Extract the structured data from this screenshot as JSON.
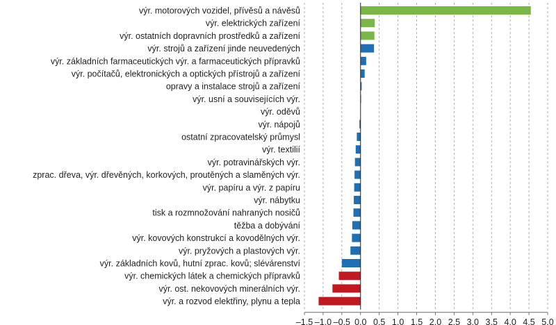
{
  "chart_data": {
    "type": "bar",
    "orientation": "horizontal",
    "categories": [
      "výr. motorových vozidel, přívěsů a návěsů",
      "výr. elektrických zařízení",
      "výr. ostatních dopravních prostředků a zařízení",
      "výr. strojů a zařízení jinde neuvedených",
      "výr. základních farmaceutických výr. a farmaceutických přípravků",
      "výr. počítačů, elektronických a optických přístrojů a zařízení",
      "opravy a instalace strojů a zařízení",
      "výr. usní a souvisejících výr.",
      "výr. oděvů",
      "výr. nápojů",
      "ostatní zpracovatelský průmysl",
      "výr. textilií",
      "výr. potravinářských výr.",
      "zprac. dřeva, výr. dřevěných, korkových, proutěných a slaměných výr.",
      "výr. papíru a výr. z papíru",
      "výr. nábytku",
      "tisk a rozmnožování nahraných nosičů",
      "těžba a dobývání",
      "výr. kovových konstrukcí a kovodělných výr.",
      "výr. pryžových a plastových výr.",
      "výr. základních kovů, hutní zprac. kovů; slévárenství",
      "výr. chemických látek a chemických přípravků",
      "výr. ost. nekovových minerálních výr.",
      "výr. a rozvod elektřiny, plynu a tepla"
    ],
    "values": [
      4.55,
      0.38,
      0.37,
      0.36,
      0.15,
      0.11,
      0.03,
      0.01,
      0.0,
      -0.03,
      -0.1,
      -0.13,
      -0.15,
      -0.16,
      -0.17,
      -0.18,
      -0.19,
      -0.22,
      -0.23,
      -0.27,
      -0.5,
      -0.58,
      -0.75,
      -1.12
    ],
    "bar_colors": [
      "#7ab648",
      "#7ab648",
      "#7ab648",
      "#1f6fb5",
      "#1f6fb5",
      "#1f6fb5",
      "#1f6fb5",
      "#1f6fb5",
      "#1f6fb5",
      "#1f6fb5",
      "#1f6fb5",
      "#1f6fb5",
      "#1f6fb5",
      "#1f6fb5",
      "#1f6fb5",
      "#1f6fb5",
      "#1f6fb5",
      "#1f6fb5",
      "#1f6fb5",
      "#1f6fb5",
      "#1f6fb5",
      "#c0191f",
      "#c0191f",
      "#c0191f"
    ],
    "xlim": [
      -1.5,
      5.0
    ],
    "xticks": [
      -1.5,
      -1.0,
      -0.5,
      0.0,
      0.5,
      1.0,
      1.5,
      2.0,
      2.5,
      3.0,
      3.5,
      4.0,
      4.5,
      5.0
    ],
    "xtick_labels": [
      "–1,5",
      "–1,0",
      "–0,5",
      "0,0",
      "0,5",
      "1,0",
      "1,5",
      "2,0",
      "2,5",
      "3,0",
      "3,5",
      "4,0",
      "4,5",
      "5,0"
    ],
    "grid": "vertical dashed",
    "title": "",
    "xlabel": "",
    "ylabel": ""
  }
}
